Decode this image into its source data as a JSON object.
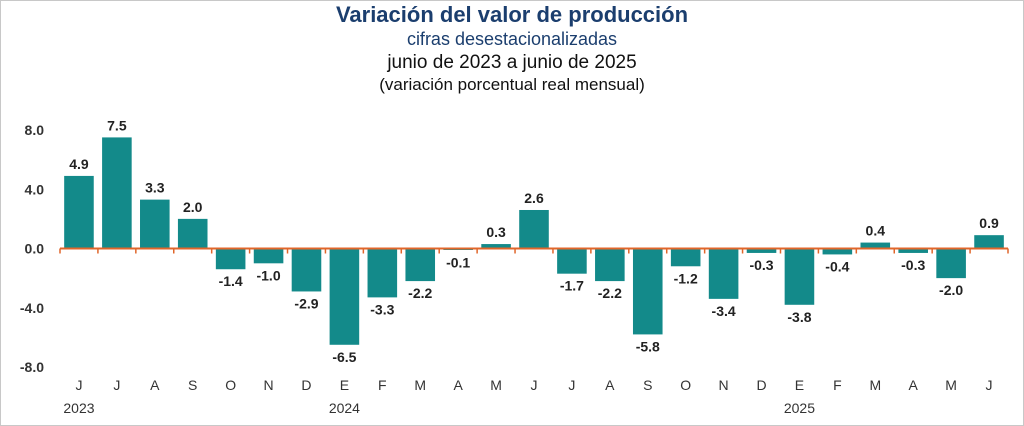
{
  "chart_data": {
    "type": "bar",
    "title": "Variación del valor de producción",
    "subtitle_lines": [
      "cifras desestacionalizadas",
      "junio de 2023 a junio de 2025",
      "(variación porcentual real mensual)"
    ],
    "categories": [
      "J",
      "J",
      "A",
      "S",
      "O",
      "N",
      "D",
      "E",
      "F",
      "M",
      "A",
      "M",
      "J",
      "J",
      "A",
      "S",
      "O",
      "N",
      "D",
      "E",
      "F",
      "M",
      "A",
      "M",
      "J"
    ],
    "values": [
      4.9,
      7.5,
      3.3,
      2.0,
      -1.4,
      -1.0,
      -2.9,
      -6.5,
      -3.3,
      -2.2,
      -0.1,
      0.3,
      2.6,
      -1.7,
      -2.2,
      -5.8,
      -1.2,
      -3.4,
      -0.3,
      -3.8,
      -0.4,
      0.4,
      -0.3,
      -2.0,
      0.9
    ],
    "value_labels": [
      "4.9",
      "7.5",
      "3.3",
      "2.0",
      "-1.4",
      "-1.0",
      "-2.9",
      "-6.5",
      "-3.3",
      "-2.2",
      "-0.1",
      "0.3",
      "2.6",
      "-1.7",
      "-2.2",
      "-5.8",
      "-1.2",
      "-3.4",
      "-0.3",
      "-3.8",
      "-0.4",
      "0.4",
      "-0.3",
      "-2.0",
      "0.9"
    ],
    "year_labels": [
      {
        "index": 0,
        "label": "2023"
      },
      {
        "index": 7,
        "label": "2024"
      },
      {
        "index": 19,
        "label": "2025"
      }
    ],
    "ylim": [
      -8,
      8
    ],
    "yticks": [
      8.0,
      4.0,
      0.0,
      -4.0,
      -8.0
    ],
    "ytick_labels": [
      "8.0",
      "4.0",
      "0.0",
      "-4.0",
      "-8.0"
    ],
    "colors": {
      "bar": "#138a8a",
      "zero_line": "#e0662a",
      "label": "#222222"
    }
  }
}
